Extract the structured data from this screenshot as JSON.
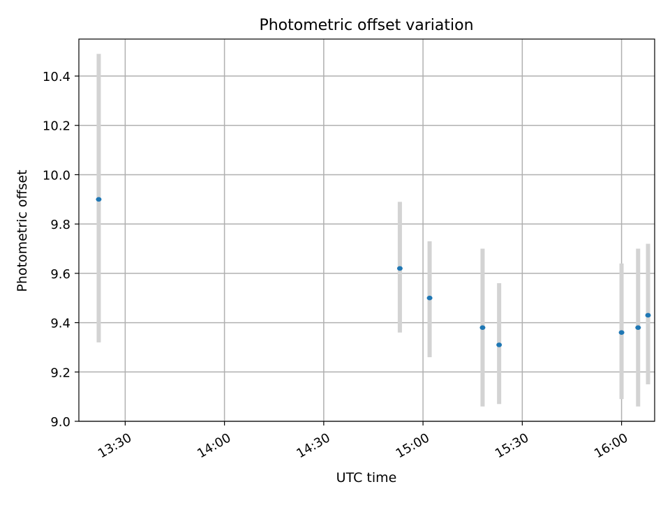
{
  "chart_data": {
    "type": "scatter",
    "title": "Photometric offset variation",
    "xlabel": "UTC time",
    "ylabel": "Photometric offset",
    "x_scale": "time",
    "xlim": [
      "13:16",
      "16:10"
    ],
    "ylim": [
      9.0,
      10.55
    ],
    "x_ticks": [
      "13:30",
      "14:00",
      "14:30",
      "15:00",
      "15:30",
      "16:00"
    ],
    "y_ticks": [
      "9.0",
      "9.2",
      "9.4",
      "9.6",
      "9.8",
      "10.0",
      "10.2",
      "10.4"
    ],
    "grid": true,
    "legend": "none",
    "series": [
      {
        "marker_color": "#1f77b4",
        "errorbar_color": "#d3d3d3",
        "points": [
          {
            "x": "13:22",
            "y": 9.9,
            "low": 9.32,
            "high": 10.49
          },
          {
            "x": "14:53",
            "y": 9.62,
            "low": 9.36,
            "high": 9.89
          },
          {
            "x": "15:02",
            "y": 9.5,
            "low": 9.26,
            "high": 9.73
          },
          {
            "x": "15:18",
            "y": 9.38,
            "low": 9.06,
            "high": 9.7
          },
          {
            "x": "15:23",
            "y": 9.31,
            "low": 9.07,
            "high": 9.56
          },
          {
            "x": "16:00",
            "y": 9.36,
            "low": 9.09,
            "high": 9.64
          },
          {
            "x": "16:05",
            "y": 9.38,
            "low": 9.06,
            "high": 9.7
          },
          {
            "x": "16:08",
            "y": 9.43,
            "low": 9.15,
            "high": 9.72
          }
        ]
      }
    ]
  }
}
